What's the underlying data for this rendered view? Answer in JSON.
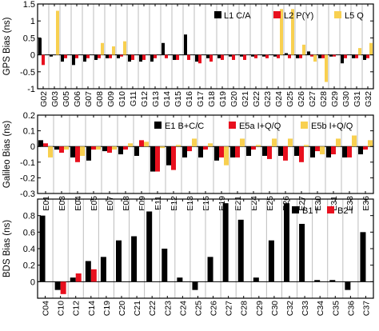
{
  "chart_data": [
    {
      "type": "bar",
      "ylabel": "GPS Bias (ns)",
      "ylim": [
        -1,
        1.5
      ],
      "yticks": [
        "-1",
        "-0.5",
        "0",
        "0.5",
        "1",
        "1.5"
      ],
      "ytick_values": [
        -1,
        -0.5,
        0,
        0.5,
        1,
        1.5
      ],
      "categories": [
        "G02",
        "G03",
        "G05",
        "G06",
        "G07",
        "G08",
        "G09",
        "G10",
        "G11",
        "G12",
        "G13",
        "G14",
        "G15",
        "G16",
        "G17",
        "G18",
        "G19",
        "G20",
        "G21",
        "G22",
        "G23",
        "G24",
        "G25",
        "G26",
        "G27",
        "G28",
        "G29",
        "G30",
        "G31",
        "G32"
      ],
      "legend_position": "top-right",
      "series": [
        {
          "name": "L1 C/A",
          "color": "#000000",
          "values": [
            0.5,
            -0.05,
            -0.2,
            -0.3,
            -0.2,
            -0.15,
            -0.1,
            -0.1,
            -0.2,
            -0.2,
            -0.2,
            0.35,
            -0.15,
            0.6,
            -0.2,
            -0.1,
            -0.1,
            -0.05,
            -0.05,
            -0.05,
            -0.05,
            -0.05,
            0.05,
            -0.1,
            0.1,
            -0.1,
            -0.05,
            -0.25,
            -0.1,
            -0.15
          ]
        },
        {
          "name": "L2 P(Y)",
          "color": "#e8101e",
          "values": [
            -0.3,
            0.0,
            -0.1,
            -0.1,
            -0.1,
            -0.1,
            -0.1,
            -0.05,
            -0.15,
            -0.15,
            -0.1,
            -0.1,
            -0.15,
            -0.15,
            -0.25,
            -0.2,
            -0.15,
            -0.15,
            -0.15,
            -0.1,
            -0.1,
            -0.1,
            -0.1,
            -0.1,
            -0.05,
            -0.1,
            -0.05,
            -0.1,
            -0.1,
            -0.1
          ]
        },
        {
          "name": "L5 Q",
          "color": "#f8d050",
          "values": [
            0,
            1.3,
            0,
            0,
            0,
            0.35,
            0.25,
            0.4,
            0,
            0,
            0,
            0,
            0,
            0,
            0,
            0,
            0,
            0,
            0,
            0,
            0,
            1.35,
            1.35,
            0.3,
            -0.2,
            -0.8,
            0,
            0,
            0.2,
            0.35
          ]
        }
      ]
    },
    {
      "type": "bar",
      "ylabel": "Galileo Bias (ns)",
      "ylim": [
        -0.3,
        0.2
      ],
      "yticks": [
        "-0.3",
        "-0.2",
        "-0.1",
        "0",
        "0.1",
        "0.2"
      ],
      "ytick_values": [
        -0.3,
        -0.2,
        -0.1,
        0,
        0.1,
        0.2
      ],
      "categories": [
        "E01",
        "E03",
        "E04",
        "E05",
        "E07",
        "E08",
        "E09",
        "E11",
        "E12",
        "E13",
        "E15",
        "E19",
        "E21",
        "E24",
        "E25",
        "E26",
        "E27",
        "E30",
        "E31",
        "E33",
        "E36"
      ],
      "legend_position": "top-right",
      "series": [
        {
          "name": "E1 B+C/C",
          "color": "#000000",
          "values": [
            0.04,
            -0.02,
            -0.07,
            -0.09,
            -0.03,
            -0.05,
            -0.06,
            -0.16,
            -0.12,
            -0.07,
            -0.07,
            -0.09,
            -0.07,
            -0.06,
            -0.06,
            -0.06,
            -0.06,
            -0.07,
            -0.07,
            -0.07,
            -0.05
          ]
        },
        {
          "name": "E5a I+Q/Q",
          "color": "#e8101e",
          "values": [
            0.02,
            -0.04,
            -0.1,
            -0.02,
            -0.04,
            -0.02,
            0.04,
            -0.16,
            -0.15,
            -0.03,
            -0.02,
            -0.07,
            -0.07,
            -0.02,
            -0.08,
            -0.09,
            -0.1,
            -0.03,
            -0.05,
            -0.07,
            -0.02
          ]
        },
        {
          "name": "E5b I+Q/Q",
          "color": "#f8d050",
          "values": [
            -0.07,
            -0.02,
            -0.06,
            -0.02,
            -0.02,
            0.02,
            0.03,
            -0.01,
            0.01,
            0.05,
            0.02,
            -0.12,
            0.05,
            0.01,
            0.05,
            0.05,
            0.01,
            -0.05,
            0.05,
            0.07,
            0.04
          ]
        }
      ]
    },
    {
      "type": "bar",
      "ylabel": "BDS Bias (ns)",
      "ylim": [
        -0.2,
        1
      ],
      "yticks": [
        "0",
        "0.2",
        "0.4",
        "0.6",
        "0.8"
      ],
      "ytick_values": [
        0,
        0.2,
        0.4,
        0.6,
        0.8
      ],
      "categories": [
        "C04",
        "C10",
        "C12",
        "C14",
        "C19",
        "C20",
        "C21",
        "C22",
        "C23",
        "C24",
        "C25",
        "C26",
        "C27",
        "C28",
        "C29",
        "C30",
        "C32",
        "C33",
        "C34",
        "C35",
        "C36",
        "C37"
      ],
      "legend_position": "top-right",
      "series": [
        {
          "name": "B1 I",
          "color": "#000000",
          "values": [
            0.8,
            -0.1,
            0.05,
            0.25,
            0.3,
            0.5,
            0.55,
            0.85,
            0.4,
            0.05,
            -0.1,
            0.3,
            0.95,
            0.75,
            0.05,
            0.5,
            0.95,
            0.7,
            0.02,
            0.02,
            -0.1,
            0.6
          ]
        },
        {
          "name": "B2 I",
          "color": "#e8101e",
          "values": [
            0,
            -0.15,
            0.1,
            0.15,
            0,
            0,
            0,
            0,
            0,
            0,
            0,
            0,
            0,
            0,
            0,
            0,
            0,
            0,
            0,
            0,
            0,
            0
          ]
        }
      ]
    }
  ]
}
